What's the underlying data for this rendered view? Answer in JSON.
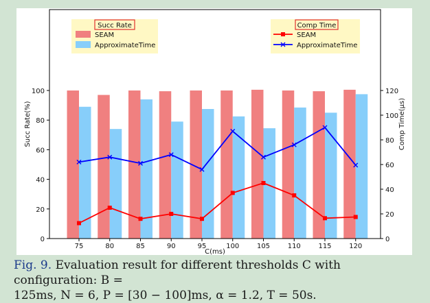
{
  "chart_data": {
    "type": "bar",
    "xlabel": "C(ms)",
    "ylabel_left": "Succ Rate(%)",
    "ylabel_right": "Comp Time(μs)",
    "categories": [
      "75",
      "80",
      "85",
      "90",
      "95",
      "100",
      "105",
      "110",
      "115",
      "120"
    ],
    "ylim_left": [
      0,
      120
    ],
    "ylim_right": [
      0,
      140
    ],
    "yticks_left": [
      "0",
      "20",
      "40",
      "60",
      "80",
      "100"
    ],
    "yticks_right": [
      "0",
      "20",
      "40",
      "60",
      "80",
      "100",
      "120"
    ],
    "grid": false,
    "bar_legend": {
      "title": "Succ Rate",
      "placement": "top-left",
      "series": [
        {
          "name": "SEAM",
          "color": "#f08080"
        },
        {
          "name": "ApproximateTime",
          "color": "#87cefa"
        }
      ]
    },
    "line_legend": {
      "title": "Comp Time",
      "placement": "top-right",
      "series": [
        {
          "name": "SEAM",
          "color": "#ff0000",
          "marker": "square"
        },
        {
          "name": "ApproximateTime",
          "color": "#0000ff",
          "marker": "x"
        }
      ]
    },
    "bar_series": [
      {
        "name": "SEAM",
        "axis": "left",
        "values": [
          100,
          97,
          100,
          99.5,
          100,
          100,
          100.5,
          100,
          99.5,
          100.5
        ]
      },
      {
        "name": "ApproximateTime",
        "axis": "left",
        "values": [
          89,
          74,
          94,
          79,
          87.5,
          82.5,
          74.5,
          88.5,
          85,
          97.5
        ]
      }
    ],
    "line_series": [
      {
        "name": "SEAM",
        "axis": "right",
        "values": [
          12.5,
          25,
          16,
          20,
          16,
          37,
          45,
          35,
          16.5,
          17.5
        ]
      },
      {
        "name": "ApproximateTime",
        "axis": "right",
        "values": [
          62,
          66,
          61,
          68,
          56,
          87,
          66,
          76,
          90,
          59.5
        ]
      }
    ]
  },
  "caption": {
    "label": "Fig. 9.",
    "text_line1": "Evaluation result for different thresholds C with configuration: B =",
    "text_line2": "125ms, N = 6, P = [30 − 100]ms, α = 1.2, T = 50s."
  }
}
